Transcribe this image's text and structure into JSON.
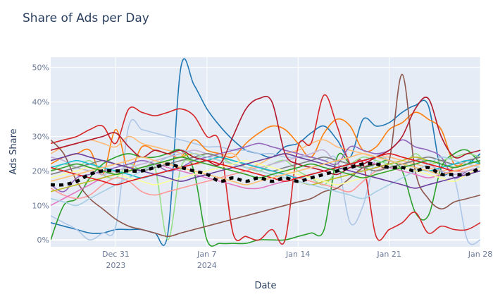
{
  "chart_data": {
    "type": "line",
    "title": "Share of Ads per Day",
    "xlabel": "Date",
    "ylabel": "Ads Share",
    "x_start": "2023-12-26",
    "x_end": "2024-01-28",
    "x_ticks": [
      {
        "date": "2023-12-31",
        "label": "Dec 31",
        "sublabel": "2023"
      },
      {
        "date": "2024-01-07",
        "label": "Jan 7",
        "sublabel": "2024"
      },
      {
        "date": "2024-01-14",
        "label": "Jan 14",
        "sublabel": ""
      },
      {
        "date": "2024-01-21",
        "label": "Jan 21",
        "sublabel": ""
      },
      {
        "date": "2024-01-28",
        "label": "Jan 28",
        "sublabel": ""
      }
    ],
    "ylim": [
      -2,
      53
    ],
    "y_ticks": [
      0,
      10,
      20,
      30,
      40,
      50
    ],
    "y_tick_labels": [
      "0%",
      "10%",
      "20%",
      "30%",
      "40%",
      "50%"
    ],
    "grid": true,
    "legend": "none",
    "background": "#e5ecf6",
    "series": [
      {
        "color": "#1f77b4",
        "values": [
          5,
          4,
          3,
          2,
          2,
          3,
          3,
          3,
          2,
          2,
          50,
          45,
          38,
          33,
          29,
          26,
          25,
          24,
          27,
          28,
          31,
          33,
          29,
          24,
          35,
          33,
          34,
          37,
          39,
          39,
          20,
          21,
          22,
          25
        ]
      },
      {
        "color": "#aec7e8",
        "values": [
          7,
          5,
          3,
          0,
          2,
          4,
          33,
          32,
          31,
          30,
          29,
          28,
          27,
          27,
          26,
          26,
          25,
          25,
          24,
          24,
          24,
          23,
          23,
          5,
          10,
          24,
          23,
          22,
          21,
          20,
          19,
          18,
          0,
          0
        ]
      },
      {
        "color": "#ff7f0e",
        "values": [
          22,
          24,
          25,
          26,
          19,
          32,
          20,
          27,
          26,
          25,
          24,
          29,
          26,
          25,
          24,
          28,
          31,
          33,
          32,
          28,
          24,
          31,
          35,
          33,
          26,
          27,
          32,
          34,
          37,
          35,
          32,
          22,
          23,
          24
        ]
      },
      {
        "color": "#ffbb78",
        "values": [
          25,
          27,
          28,
          29,
          28,
          27,
          30,
          28,
          27,
          26,
          25,
          22,
          23,
          24,
          25,
          21,
          22,
          24,
          25,
          26,
          28,
          29,
          27,
          26,
          25,
          24,
          24,
          23,
          22,
          21,
          20,
          21,
          22,
          23
        ]
      },
      {
        "color": "#2ca02c",
        "values": [
          0,
          10,
          12,
          18,
          22,
          24,
          25,
          24,
          24,
          25,
          26,
          20,
          0,
          -1,
          -1,
          -1,
          0,
          0,
          0,
          1,
          2,
          3,
          24,
          22,
          21,
          22,
          23,
          20,
          8,
          7,
          21,
          25,
          26,
          22
        ]
      },
      {
        "color": "#98df8a",
        "values": [
          20,
          22,
          21,
          23,
          19,
          18,
          22,
          20,
          21,
          0,
          21,
          23,
          25,
          24,
          22,
          21,
          20,
          22,
          23,
          20,
          18,
          16,
          20,
          22,
          24,
          23,
          22,
          21,
          25,
          22,
          23,
          24,
          25,
          24
        ]
      },
      {
        "color": "#d62728",
        "values": [
          28,
          29,
          30,
          32,
          33,
          28,
          38,
          37,
          36,
          37,
          38,
          36,
          30,
          28,
          2,
          1,
          0,
          3,
          0,
          27,
          28,
          42,
          33,
          22,
          22,
          1,
          3,
          5,
          8,
          2,
          4,
          3,
          3,
          5
        ]
      },
      {
        "color": "#ff9896",
        "values": [
          15,
          13,
          12,
          13,
          16,
          18,
          17,
          14,
          13,
          14,
          15,
          16,
          17,
          18,
          19,
          20,
          21,
          20,
          19,
          18,
          17,
          16,
          15,
          14,
          17,
          20,
          21,
          22,
          23,
          22,
          21,
          20,
          20,
          21
        ]
      },
      {
        "color": "#9467bd",
        "values": [
          16,
          14,
          18,
          19,
          20,
          21,
          22,
          23,
          22,
          20,
          21,
          23,
          24,
          25,
          26,
          27,
          28,
          27,
          26,
          25,
          24,
          23,
          22,
          27,
          26,
          25,
          26,
          29,
          27,
          26,
          24,
          18,
          20,
          21
        ]
      },
      {
        "color": "#c5b0d5",
        "values": [
          24,
          23,
          21,
          20,
          19,
          20,
          21,
          22,
          23,
          24,
          25,
          26,
          25,
          24,
          23,
          22,
          21,
          22,
          23,
          24,
          25,
          26,
          22,
          21,
          20,
          21,
          22,
          23,
          24,
          22,
          20,
          19,
          20,
          21
        ]
      },
      {
        "color": "#8c564b",
        "values": [
          29,
          25,
          17,
          12,
          9,
          6,
          4,
          3,
          2,
          1,
          2,
          3,
          4,
          5,
          6,
          7,
          8,
          9,
          10,
          11,
          12,
          14,
          15,
          18,
          21,
          22,
          23,
          48,
          20,
          12,
          9,
          11,
          12,
          13
        ]
      },
      {
        "color": "#e377c2",
        "values": [
          10,
          12,
          14,
          16,
          18,
          19,
          20,
          21,
          22,
          21,
          20,
          19,
          18,
          17,
          16,
          15,
          15,
          16,
          17,
          18,
          19,
          20,
          21,
          22,
          23,
          22,
          21,
          20,
          19,
          18,
          19,
          20,
          21,
          22
        ]
      },
      {
        "color": "#7f7f7f",
        "values": [
          19,
          20,
          21,
          22,
          23,
          22,
          21,
          20,
          21,
          22,
          23,
          24,
          25,
          24,
          23,
          22,
          21,
          20,
          21,
          22,
          23,
          24,
          23,
          22,
          21,
          20,
          21,
          22,
          23,
          24,
          23,
          22,
          23,
          24
        ]
      },
      {
        "color": "#bcbd22",
        "values": [
          14,
          15,
          16,
          17,
          18,
          19,
          20,
          21,
          22,
          23,
          24,
          25,
          24,
          23,
          22,
          21,
          20,
          19,
          18,
          17,
          16,
          17,
          18,
          19,
          20,
          21,
          22,
          23,
          24,
          23,
          22,
          21,
          22,
          23
        ]
      },
      {
        "color": "#17becf",
        "values": [
          21,
          22,
          23,
          22,
          21,
          20,
          19,
          18,
          19,
          20,
          21,
          22,
          23,
          24,
          23,
          22,
          21,
          20,
          19,
          18,
          19,
          20,
          21,
          22,
          23,
          24,
          23,
          22,
          21,
          20,
          21,
          22,
          23,
          22
        ]
      },
      {
        "color": "#a6cee3",
        "values": [
          12,
          11,
          10,
          12,
          14,
          16,
          18,
          20,
          22,
          24,
          26,
          25,
          24,
          23,
          22,
          21,
          20,
          19,
          18,
          17,
          16,
          15,
          14,
          13,
          12,
          14,
          16,
          18,
          20,
          22,
          24,
          23,
          22,
          21
        ]
      },
      {
        "color": "#b2182b",
        "values": [
          26,
          27,
          28,
          29,
          30,
          31,
          27,
          24,
          26,
          25,
          26,
          24,
          23,
          22,
          30,
          38,
          41,
          40,
          25,
          22,
          21,
          20,
          19,
          21,
          22,
          24,
          26,
          30,
          38,
          41,
          30,
          24,
          25,
          26
        ]
      },
      {
        "color": "#ffff99",
        "values": [
          18,
          19,
          20,
          21,
          20,
          19,
          18,
          17,
          16,
          17,
          18,
          19,
          20,
          21,
          22,
          23,
          22,
          21,
          20,
          19,
          18,
          17,
          16,
          17,
          18,
          19,
          20,
          21,
          20,
          19,
          18,
          17,
          19,
          21
        ]
      },
      {
        "color": "#6a3d9a",
        "values": [
          23,
          24,
          25,
          24,
          23,
          22,
          21,
          20,
          19,
          18,
          17,
          18,
          19,
          20,
          21,
          22,
          23,
          24,
          25,
          24,
          23,
          22,
          21,
          20,
          19,
          18,
          17,
          16,
          15,
          16,
          17,
          18,
          19,
          20
        ]
      },
      {
        "color": "#e31a1c",
        "values": [
          21,
          20,
          19,
          18,
          17,
          16,
          17,
          18,
          19,
          20,
          21,
          22,
          23,
          22,
          21,
          20,
          19,
          18,
          17,
          18,
          19,
          20,
          21,
          22,
          23,
          24,
          25,
          24,
          23,
          22,
          21,
          20,
          21,
          22
        ]
      },
      {
        "color": "#fdbf6f",
        "values": [
          17,
          18,
          19,
          20,
          21,
          22,
          23,
          24,
          23,
          22,
          21,
          20,
          19,
          18,
          17,
          16,
          17,
          18,
          19,
          20,
          21,
          22,
          23,
          24,
          25,
          24,
          23,
          22,
          21,
          20,
          19,
          20,
          21,
          22
        ]
      },
      {
        "color": "#33a02c",
        "values": [
          20,
          21,
          22,
          21,
          20,
          19,
          20,
          21,
          22,
          23,
          24,
          23,
          22,
          21,
          20,
          19,
          18,
          19,
          20,
          21,
          22,
          21,
          20,
          19,
          18,
          19,
          20,
          21,
          22,
          23,
          22,
          21,
          22,
          23
        ]
      },
      {
        "name": "average",
        "color": "#000000",
        "dashed": true,
        "values": [
          16,
          16,
          17,
          19,
          20,
          20,
          20,
          20,
          21,
          22,
          21,
          20,
          19,
          17,
          18,
          17,
          18,
          17,
          18,
          17,
          18,
          19,
          20,
          21,
          22,
          22,
          21,
          21,
          20,
          21,
          19,
          19,
          19,
          21
        ]
      }
    ]
  }
}
